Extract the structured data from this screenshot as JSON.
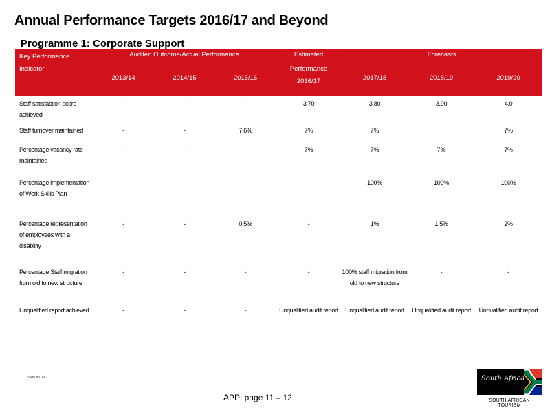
{
  "title": "Annual Performance Targets 2016/17 and Beyond",
  "subtitle": "Programme 1: Corporate Support",
  "table": {
    "header": {
      "kpi_line1": "Key Performance",
      "kpi_line2": "Indicator",
      "audited": "Audited Outcome/Actual Performance",
      "estimated_line1": "Estimated",
      "estimated_line2": "Performance",
      "forecasts": "Forecasts",
      "years": [
        "2013/14",
        "2014/15",
        "2015/16",
        "2016/17",
        "2017/18",
        "2018/19",
        "2019/20"
      ]
    },
    "rows": [
      {
        "kpi": "Staff satisfaction score achieved",
        "values": [
          "-",
          "-",
          "-",
          "3.70",
          "3.80",
          "3.90",
          "4.0"
        ]
      },
      {
        "kpi": "Staff turnover maintained",
        "values": [
          "-",
          "-",
          "7.6%",
          "7%",
          "7%",
          "",
          "7%"
        ]
      },
      {
        "kpi": "Percentage vacancy rate maintained",
        "values": [
          "-",
          "-",
          "-",
          "7%",
          "7%",
          "7%",
          "7%"
        ]
      },
      {
        "kpi": "Percentage implementation of Work Skills Plan",
        "values": [
          "",
          "",
          "",
          "-",
          "100%",
          "100%",
          "100%"
        ]
      },
      {
        "kpi": "Percentage representation of employees with a disability",
        "values": [
          "-",
          "-",
          "0.5%",
          "-",
          "1%",
          "1.5%",
          "2%"
        ]
      },
      {
        "kpi": "Percentage Staff migration from old to new structure",
        "values": [
          "-",
          "-",
          "-",
          "-",
          "100% staff migration from old to new structure",
          "-",
          "-"
        ]
      },
      {
        "kpi": "Unqualified report achieved",
        "values": [
          "-",
          "-",
          "-",
          "Unqualified audit report",
          "Unqualified audit report",
          "Unqualified audit report",
          "Unqualified audit report"
        ]
      }
    ]
  },
  "footnote": "Slide no. 48",
  "page_label": "APP: page 11 – 12",
  "logo": {
    "text": "South Africa",
    "caption": "SOUTH AFRICAN TOURISM"
  }
}
